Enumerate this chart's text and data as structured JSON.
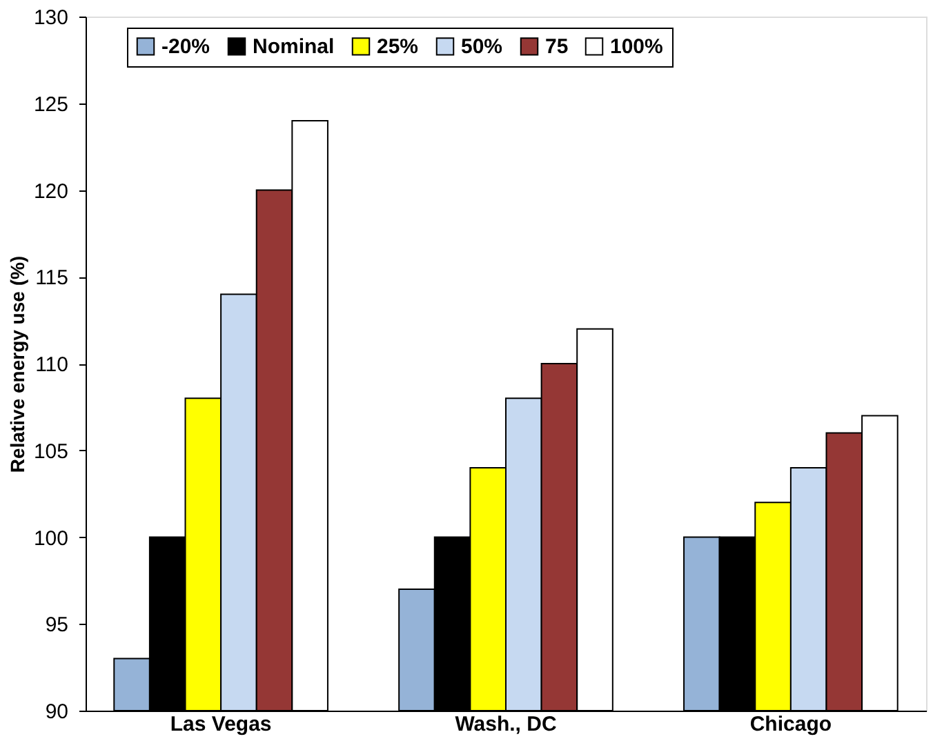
{
  "chart_data": {
    "type": "bar",
    "ylabel": "Relative energy use (%)",
    "categories": [
      "Las Vegas",
      "Wash., DC",
      "Chicago"
    ],
    "series": [
      {
        "name": "-20%",
        "color": "#95b3d7",
        "values": [
          93,
          97,
          100
        ]
      },
      {
        "name": "Nominal",
        "color": "#000000",
        "values": [
          100,
          100,
          100
        ]
      },
      {
        "name": "25%",
        "color": "#ffff00",
        "values": [
          108,
          104,
          102
        ]
      },
      {
        "name": "50%",
        "color": "#c6d9f1",
        "values": [
          114,
          108,
          104
        ]
      },
      {
        "name": "75",
        "color": "#953735",
        "values": [
          120,
          110,
          106
        ]
      },
      {
        "name": "100%",
        "color": "#ffffff",
        "values": [
          124,
          112,
          107
        ]
      }
    ],
    "ylim": [
      90,
      130
    ],
    "yticks": [
      90,
      95,
      100,
      105,
      110,
      115,
      120,
      125,
      130
    ],
    "grid": false,
    "legend": "top"
  }
}
